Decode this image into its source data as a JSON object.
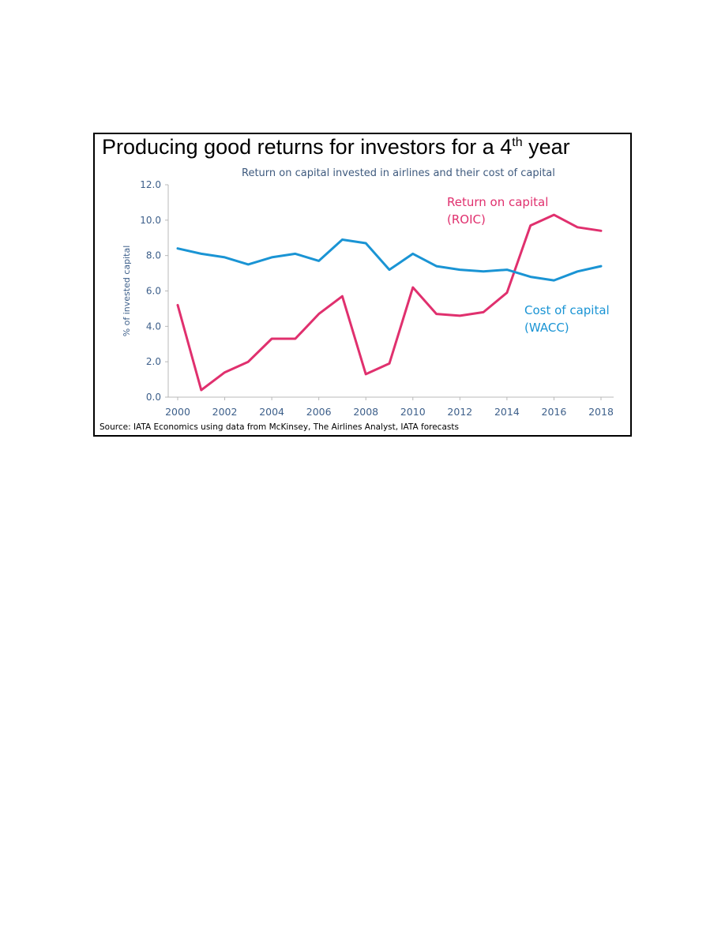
{
  "chart_data": {
    "type": "line",
    "title": "Producing good returns for investors for a 4",
    "title_superscript": "th",
    "title_tail": " year",
    "subtitle": "Return on capital invested in airlines and their cost of capital",
    "ylabel": "% of invested capital",
    "xlabel": "",
    "source": "Source: IATA Economics using data from McKinsey, The Airlines Analyst, IATA forecasts",
    "ylim": [
      0,
      12
    ],
    "xlim": [
      2000,
      2018
    ],
    "yticks": [
      "0.0",
      "2.0",
      "4.0",
      "6.0",
      "8.0",
      "10.0",
      "12.0"
    ],
    "xticks": [
      "2000",
      "2002",
      "2004",
      "2006",
      "2008",
      "2010",
      "2012",
      "2014",
      "2016",
      "2018"
    ],
    "grid": false,
    "x": [
      2000,
      2001,
      2002,
      2003,
      2004,
      2005,
      2006,
      2007,
      2008,
      2009,
      2010,
      2011,
      2012,
      2013,
      2014,
      2015,
      2016,
      2017,
      2018
    ],
    "series": [
      {
        "name": "Return on capital (ROIC)",
        "label_lines": [
          "Return on capital",
          "(ROIC)"
        ],
        "color": "#e0306e",
        "values": [
          5.2,
          0.4,
          1.4,
          2.0,
          3.3,
          3.3,
          4.7,
          5.7,
          1.3,
          1.9,
          6.2,
          4.7,
          4.6,
          4.8,
          5.9,
          9.7,
          10.3,
          9.6,
          9.4
        ]
      },
      {
        "name": "Cost of capital (WACC)",
        "label_lines": [
          "Cost of capital",
          "(WACC)"
        ],
        "color": "#1a94d4",
        "values": [
          8.4,
          8.1,
          7.9,
          7.5,
          7.9,
          8.1,
          7.7,
          8.9,
          8.7,
          7.2,
          8.1,
          7.4,
          7.2,
          7.1,
          7.2,
          6.8,
          6.6,
          7.1,
          7.4
        ]
      }
    ],
    "colors": {
      "axis": "#b8b8b8",
      "tick_text": "#3d5f8a",
      "subtitle": "#3e5a7e"
    }
  }
}
